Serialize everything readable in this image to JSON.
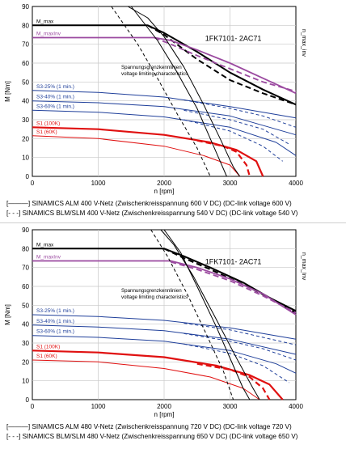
{
  "chart_data": [
    {
      "type": "line",
      "model_label": "1FK7101- 2AC71",
      "xlabel": "n [rpm]",
      "ylabel": "M [Nm]",
      "right_label": "n_max_inv",
      "annotation": [
        "Spannungsgrenzkennlinien",
        "voltage limiting characteristics"
      ],
      "xlim": [
        0,
        4000
      ],
      "ylim": [
        0,
        90
      ],
      "x_ticks": [
        "0",
        "1000",
        "2000",
        "3000",
        "4000"
      ],
      "y_ticks": [
        "0",
        "10",
        "20",
        "30",
        "40",
        "50",
        "60",
        "70",
        "80",
        "90"
      ],
      "grid": true,
      "legend": [
        {
          "style": "solid",
          "text": "SINAMICS ALM 400 V-Netz (Zwischenkreisspannung 600 V DC) (DC-link voltage 600 V)"
        },
        {
          "style": "dashed",
          "text": "SINAMICS BLM/SLM 400 V-Netz (Zwischenkreisspannung 540 V DC) (DC-link voltage 540 V)"
        }
      ],
      "series": [
        {
          "name": "M_max",
          "color": "#000000",
          "style": "solid",
          "width": 2,
          "points": [
            [
              0,
              80
            ],
            [
              1750,
              80
            ],
            [
              2000,
              76
            ],
            [
              2500,
              66
            ],
            [
              3000,
              55
            ],
            [
              3500,
              46
            ],
            [
              4000,
              38
            ]
          ]
        },
        {
          "name": "M_max",
          "color": "#000000",
          "style": "dashed",
          "width": 2,
          "points": [
            [
              1750,
              80
            ],
            [
              2000,
              75
            ],
            [
              2500,
              62
            ],
            [
              3000,
              51
            ],
            [
              3500,
              44
            ],
            [
              4000,
              38
            ]
          ]
        },
        {
          "name": "M_maxInv",
          "color": "#9b4aa0",
          "style": "solid",
          "width": 1.8,
          "points": [
            [
              0,
              73.5
            ],
            [
              1850,
              73.5
            ],
            [
              2100,
              72
            ],
            [
              2500,
              67
            ],
            [
              3000,
              60
            ],
            [
              3500,
              52
            ],
            [
              4000,
              44
            ]
          ]
        },
        {
          "name": "M_maxInv",
          "color": "#9b4aa0",
          "style": "dashed",
          "width": 1.8,
          "points": [
            [
              1850,
              73.5
            ],
            [
              2100,
              70
            ],
            [
              2500,
              64
            ],
            [
              3000,
              57
            ],
            [
              3500,
              50
            ],
            [
              4000,
              45
            ]
          ]
        },
        {
          "name": "S3-25% (1 min.)",
          "color": "#1f3f9a",
          "style": "solid",
          "width": 1,
          "points": [
            [
              0,
              45.5
            ],
            [
              1000,
              44.5
            ],
            [
              2000,
              42
            ],
            [
              3000,
              37
            ],
            [
              4000,
              31
            ]
          ]
        },
        {
          "name": "S3-25% (1 min.)",
          "color": "#1f3f9a",
          "style": "dashed",
          "width": 1,
          "points": [
            [
              2300,
              40.5
            ],
            [
              3000,
              36
            ],
            [
              3500,
              32
            ],
            [
              4000,
              26
            ]
          ]
        },
        {
          "name": "S3-40% (1 min.)",
          "color": "#1f3f9a",
          "style": "solid",
          "width": 1,
          "points": [
            [
              0,
              40
            ],
            [
              1000,
              39
            ],
            [
              2000,
              37
            ],
            [
              3000,
              32
            ],
            [
              4000,
              22
            ]
          ]
        },
        {
          "name": "S3-40% (1 min.)",
          "color": "#1f3f9a",
          "style": "dashed",
          "width": 1,
          "points": [
            [
              2300,
              35
            ],
            [
              3000,
              30
            ],
            [
              3500,
              25
            ],
            [
              3900,
              17
            ]
          ]
        },
        {
          "name": "S3-60% (1 min.)",
          "color": "#1f3f9a",
          "style": "solid",
          "width": 1,
          "points": [
            [
              0,
              35
            ],
            [
              1000,
              34
            ],
            [
              2000,
              31.5
            ],
            [
              3000,
              26
            ],
            [
              3700,
              18
            ],
            [
              4000,
              11
            ]
          ]
        },
        {
          "name": "S3-60% (1 min.)",
          "color": "#1f3f9a",
          "style": "dashed",
          "width": 1,
          "points": [
            [
              2300,
              30
            ],
            [
              3000,
              24
            ],
            [
              3500,
              16
            ],
            [
              3800,
              8
            ]
          ]
        },
        {
          "name": "S1 (100K)",
          "color": "#e01010",
          "style": "solid",
          "width": 2.2,
          "points": [
            [
              0,
              26
            ],
            [
              1000,
              25
            ],
            [
              2000,
              22
            ],
            [
              2700,
              18
            ],
            [
              3100,
              14
            ],
            [
              3400,
              8
            ],
            [
              3500,
              0
            ]
          ]
        },
        {
          "name": "S1 (100K)",
          "color": "#e01010",
          "style": "dashed",
          "width": 2.2,
          "points": [
            [
              2500,
              19
            ],
            [
              2900,
              16
            ],
            [
              3100,
              13
            ],
            [
              3250,
              6
            ],
            [
              3300,
              0
            ]
          ]
        },
        {
          "name": "S1 (60K)",
          "color": "#e01010",
          "style": "solid",
          "width": 1,
          "points": [
            [
              0,
              21.5
            ],
            [
              1000,
              20
            ],
            [
              2000,
              16
            ],
            [
              2600,
              11
            ],
            [
              3000,
              6
            ],
            [
              3150,
              0
            ]
          ]
        },
        {
          "name": "",
          "color": "#000000",
          "style": "solid",
          "width": 1,
          "points": [
            [
              1450,
              90
            ],
            [
              1750,
              84
            ],
            [
              2000,
              74
            ],
            [
              2300,
              58
            ],
            [
              2600,
              38
            ],
            [
              2850,
              20
            ],
            [
              3050,
              5
            ],
            [
              3150,
              0
            ]
          ]
        },
        {
          "name": "",
          "color": "#000000",
          "style": "solid",
          "width": 1,
          "points": [
            [
              1500,
              90
            ],
            [
              1900,
              72
            ],
            [
              2200,
              55
            ],
            [
              2500,
              36
            ],
            [
              2700,
              20
            ],
            [
              2850,
              8
            ],
            [
              2950,
              0
            ]
          ]
        },
        {
          "name": "",
          "color": "#000000",
          "style": "dashed",
          "width": 1,
          "points": [
            [
              1200,
              90
            ],
            [
              1600,
              70
            ],
            [
              1900,
              52
            ],
            [
              2200,
              33
            ],
            [
              2500,
              15
            ],
            [
              2700,
              0
            ]
          ]
        }
      ]
    },
    {
      "type": "line",
      "model_label": "1FK7101- 2AC71",
      "xlabel": "n [rpm]",
      "ylabel": "M [Nm]",
      "right_label": "n_max_Inv",
      "annotation": [
        "Spannungsgrenzkennlinien",
        "voltage limiting characteristics"
      ],
      "xlim": [
        0,
        4000
      ],
      "ylim": [
        0,
        90
      ],
      "x_ticks": [
        "0",
        "1000",
        "2000",
        "3000",
        "4000"
      ],
      "y_ticks": [
        "0",
        "10",
        "20",
        "30",
        "40",
        "50",
        "60",
        "70",
        "80",
        "90"
      ],
      "grid": true,
      "legend": [
        {
          "style": "solid",
          "text": "SINAMICS ALM 480 V-Netz (Zwischenkreisspannung 720 V DC) (DC-link voltage 720 V)"
        },
        {
          "style": "dashed",
          "text": "SINAMICS BLM/SLM 480 V-Netz (Zwischenkreisspannung 650 V DC) (DC-link voltage 650 V)"
        }
      ],
      "series": [
        {
          "name": "M_max",
          "color": "#000000",
          "style": "solid",
          "width": 2,
          "points": [
            [
              0,
              80
            ],
            [
              2000,
              80
            ],
            [
              2300,
              76
            ],
            [
              2700,
              70
            ],
            [
              3200,
              62
            ],
            [
              3600,
              54
            ],
            [
              4000,
              47
            ]
          ]
        },
        {
          "name": "M_max",
          "color": "#000000",
          "style": "dashed",
          "width": 2,
          "points": [
            [
              2000,
              80
            ],
            [
              2300,
              75
            ],
            [
              2700,
              69
            ],
            [
              3200,
              61
            ],
            [
              3600,
              54
            ],
            [
              4000,
              46
            ]
          ]
        },
        {
          "name": "M_maxInv",
          "color": "#9b4aa0",
          "style": "solid",
          "width": 1.8,
          "points": [
            [
              0,
              73.5
            ],
            [
              2100,
              73.5
            ],
            [
              2500,
              70
            ],
            [
              3000,
              64
            ],
            [
              3500,
              56
            ],
            [
              4000,
              45
            ]
          ]
        },
        {
          "name": "M_maxInv",
          "color": "#9b4aa0",
          "style": "dashed",
          "width": 1.8,
          "points": [
            [
              2100,
              73
            ],
            [
              2500,
              69
            ],
            [
              3000,
              63
            ],
            [
              3500,
              55
            ],
            [
              4000,
              46
            ]
          ]
        },
        {
          "name": "S3-25% (1 min.)",
          "color": "#1f3f9a",
          "style": "solid",
          "width": 1,
          "points": [
            [
              0,
              45
            ],
            [
              1000,
              44
            ],
            [
              2000,
              42
            ],
            [
              3000,
              38
            ],
            [
              4000,
              32
            ]
          ]
        },
        {
          "name": "S3-25% (1 min.)",
          "color": "#1f3f9a",
          "style": "dashed",
          "width": 1,
          "points": [
            [
              2300,
              40.5
            ],
            [
              3000,
              37
            ],
            [
              3500,
              33
            ],
            [
              4000,
              29
            ]
          ]
        },
        {
          "name": "S3-40% (1 min.)",
          "color": "#1f3f9a",
          "style": "solid",
          "width": 1,
          "points": [
            [
              0,
              39.5
            ],
            [
              1000,
              38.5
            ],
            [
              2000,
              36.5
            ],
            [
              3000,
              32
            ],
            [
              4000,
              24
            ]
          ]
        },
        {
          "name": "S3-40% (1 min.)",
          "color": "#1f3f9a",
          "style": "dashed",
          "width": 1,
          "points": [
            [
              2300,
              35
            ],
            [
              3000,
              31
            ],
            [
              3500,
              27
            ],
            [
              4000,
              21
            ]
          ]
        },
        {
          "name": "S3-60% (1 min.)",
          "color": "#1f3f9a",
          "style": "solid",
          "width": 1,
          "points": [
            [
              0,
              34
            ],
            [
              1000,
              33
            ],
            [
              2000,
              31
            ],
            [
              3000,
              26
            ],
            [
              3700,
              19
            ],
            [
              4000,
              14
            ]
          ]
        },
        {
          "name": "S3-60% (1 min.)",
          "color": "#1f3f9a",
          "style": "dashed",
          "width": 1,
          "points": [
            [
              2300,
              29.5
            ],
            [
              3000,
              24.5
            ],
            [
              3500,
              18
            ],
            [
              3900,
              9
            ]
          ]
        },
        {
          "name": "S1 (100K)",
          "color": "#e01010",
          "style": "solid",
          "width": 2.2,
          "points": [
            [
              0,
              26
            ],
            [
              1000,
              25
            ],
            [
              2000,
              22.5
            ],
            [
              2800,
              18
            ],
            [
              3300,
              13
            ],
            [
              3600,
              8
            ],
            [
              3800,
              0
            ]
          ]
        },
        {
          "name": "S1 (100K)",
          "color": "#e01010",
          "style": "dashed",
          "width": 2.2,
          "points": [
            [
              2500,
              19
            ],
            [
              3000,
              16
            ],
            [
              3300,
              12
            ],
            [
              3500,
              6
            ],
            [
              3600,
              0
            ]
          ]
        },
        {
          "name": "S1 (60K)",
          "color": "#e01010",
          "style": "solid",
          "width": 1,
          "points": [
            [
              0,
              21
            ],
            [
              1000,
              20
            ],
            [
              2000,
              16.5
            ],
            [
              2700,
              12
            ],
            [
              3200,
              6
            ],
            [
              3450,
              0
            ]
          ]
        },
        {
          "name": "",
          "color": "#000000",
          "style": "solid",
          "width": 1,
          "points": [
            [
              1950,
              90
            ],
            [
              2150,
              82
            ],
            [
              2450,
              65
            ],
            [
              2800,
              42
            ],
            [
              3100,
              22
            ],
            [
              3350,
              6
            ],
            [
              3450,
              0
            ]
          ]
        },
        {
          "name": "",
          "color": "#000000",
          "style": "solid",
          "width": 1,
          "points": [
            [
              2000,
              90
            ],
            [
              2250,
              78
            ],
            [
              2500,
              60
            ],
            [
              2800,
              38
            ],
            [
              3050,
              18
            ],
            [
              3200,
              6
            ],
            [
              3300,
              0
            ]
          ]
        },
        {
          "name": "",
          "color": "#000000",
          "style": "dashed",
          "width": 1,
          "points": [
            [
              1800,
              90
            ],
            [
              2050,
              76
            ],
            [
              2350,
              56
            ],
            [
              2650,
              34
            ],
            [
              2900,
              15
            ],
            [
              3050,
              0
            ]
          ]
        }
      ]
    }
  ]
}
